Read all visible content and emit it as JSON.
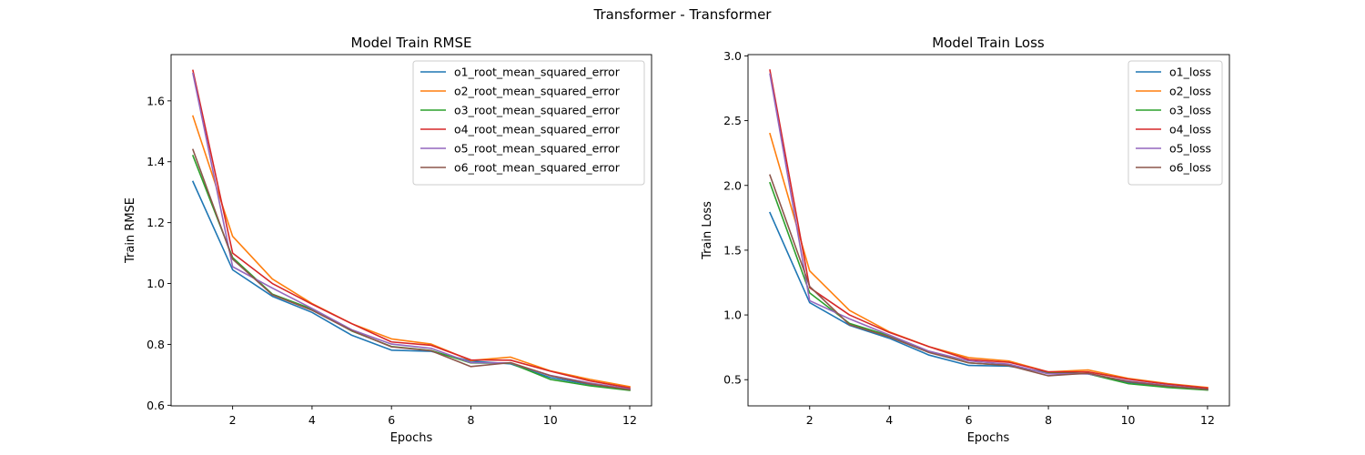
{
  "figure": {
    "suptitle": "Transformer - Transformer"
  },
  "chart_data": [
    {
      "type": "line",
      "title": "Model Train RMSE",
      "xlabel": "Epochs",
      "ylabel": "Train RMSE",
      "xlim": [
        0.45,
        12.55
      ],
      "ylim": [
        0.598,
        1.752
      ],
      "xticks": [
        2,
        4,
        6,
        8,
        10,
        12
      ],
      "yticks": [
        0.6,
        0.8,
        1.0,
        1.2,
        1.4,
        1.6
      ],
      "ytick_labels": [
        "0.6",
        "0.8",
        "1.0",
        "1.2",
        "1.4",
        "1.6"
      ],
      "legend_position": "upper right",
      "x": [
        1,
        2,
        3,
        4,
        5,
        6,
        7,
        8,
        9,
        10,
        11,
        12
      ],
      "series": [
        {
          "name": "o1_root_mean_squared_error",
          "color": "#1f77b4",
          "values": [
            1.335,
            1.045,
            0.958,
            0.905,
            0.83,
            0.781,
            0.777,
            0.745,
            0.736,
            0.691,
            0.668,
            0.653
          ]
        },
        {
          "name": "o2_root_mean_squared_error",
          "color": "#ff7f0e",
          "values": [
            1.55,
            1.155,
            1.015,
            0.934,
            0.868,
            0.818,
            0.801,
            0.747,
            0.758,
            0.713,
            0.685,
            0.661
          ]
        },
        {
          "name": "o3_root_mean_squared_error",
          "color": "#2ca02c",
          "values": [
            1.42,
            1.085,
            0.965,
            0.916,
            0.844,
            0.793,
            0.78,
            0.739,
            0.738,
            0.685,
            0.664,
            0.649
          ]
        },
        {
          "name": "o4_root_mean_squared_error",
          "color": "#d62728",
          "values": [
            1.7,
            1.1,
            1.0,
            0.932,
            0.868,
            0.808,
            0.797,
            0.749,
            0.748,
            0.712,
            0.68,
            0.657
          ]
        },
        {
          "name": "o5_root_mean_squared_error",
          "color": "#9467bd",
          "values": [
            1.69,
            1.055,
            0.985,
            0.918,
            0.848,
            0.801,
            0.787,
            0.74,
            0.739,
            0.698,
            0.673,
            0.653
          ]
        },
        {
          "name": "o6_root_mean_squared_error",
          "color": "#8c564b",
          "values": [
            1.44,
            1.08,
            0.963,
            0.912,
            0.845,
            0.792,
            0.779,
            0.727,
            0.74,
            0.697,
            0.67,
            0.651
          ]
        }
      ]
    },
    {
      "type": "line",
      "title": "Model Train Loss",
      "xlabel": "Epochs",
      "ylabel": "Train Loss",
      "xlim": [
        0.45,
        12.55
      ],
      "ylim": [
        0.298,
        3.01
      ],
      "xticks": [
        2,
        4,
        6,
        8,
        10,
        12
      ],
      "yticks": [
        0.5,
        1.0,
        1.5,
        2.0,
        2.5,
        3.0
      ],
      "ytick_labels": [
        "0.5",
        "1.0",
        "1.5",
        "2.0",
        "2.5",
        "3.0"
      ],
      "legend_position": "upper right",
      "x": [
        1,
        2,
        3,
        4,
        5,
        6,
        7,
        8,
        9,
        10,
        11,
        12
      ],
      "series": [
        {
          "name": "o1_loss",
          "color": "#1f77b4",
          "values": [
            1.79,
            1.095,
            0.92,
            0.82,
            0.69,
            0.61,
            0.605,
            0.555,
            0.545,
            0.48,
            0.445,
            0.425
          ]
        },
        {
          "name": "o2_loss",
          "color": "#ff7f0e",
          "values": [
            2.4,
            1.34,
            1.035,
            0.87,
            0.755,
            0.67,
            0.645,
            0.56,
            0.575,
            0.51,
            0.47,
            0.44
          ]
        },
        {
          "name": "o3_loss",
          "color": "#2ca02c",
          "values": [
            2.02,
            1.17,
            0.935,
            0.84,
            0.715,
            0.63,
            0.61,
            0.55,
            0.545,
            0.47,
            0.44,
            0.42
          ]
        },
        {
          "name": "o4_loss",
          "color": "#d62728",
          "values": [
            2.89,
            1.21,
            1.0,
            0.865,
            0.755,
            0.655,
            0.635,
            0.56,
            0.56,
            0.505,
            0.465,
            0.435
          ]
        },
        {
          "name": "o5_loss",
          "color": "#9467bd",
          "values": [
            2.86,
            1.11,
            0.97,
            0.845,
            0.72,
            0.645,
            0.62,
            0.545,
            0.545,
            0.49,
            0.455,
            0.425
          ]
        },
        {
          "name": "o6_loss",
          "color": "#8c564b",
          "values": [
            2.08,
            1.22,
            0.925,
            0.83,
            0.71,
            0.63,
            0.61,
            0.53,
            0.55,
            0.485,
            0.45,
            0.425
          ]
        }
      ]
    }
  ]
}
